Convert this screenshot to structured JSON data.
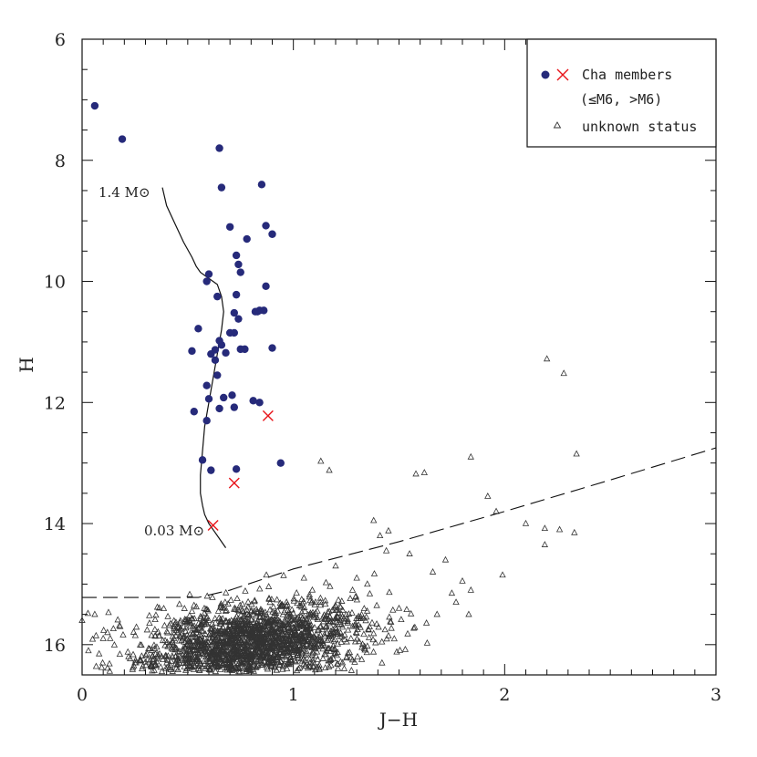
{
  "chart_data": {
    "type": "scatter",
    "title": "",
    "xlabel": "J−H",
    "ylabel": "H",
    "xlim": [
      0,
      3
    ],
    "ylim": [
      16.5,
      6
    ],
    "y_inverted": true,
    "x_ticks": [
      "0",
      "1",
      "2",
      "3"
    ],
    "y_ticks": [
      "6",
      "8",
      "10",
      "12",
      "14",
      "16"
    ],
    "grid": false,
    "legend_position": "top-right",
    "legend": {
      "members_label": "Cha members",
      "members_sub": "(≤M6, >M6)",
      "unknown_label": "unknown status"
    },
    "colors": {
      "members_early": "#262a7a",
      "members_late": "#e8151b",
      "unknown": "#333333",
      "lines": "#111111"
    },
    "annotations": {
      "upper_mass": "1.4 M⊙",
      "lower_mass": "0.03 M⊙"
    },
    "series": [
      {
        "name": "Cha members (≤M6)",
        "marker": "filled-circle",
        "x": [
          0.06,
          0.19,
          0.65,
          0.66,
          0.85,
          0.87,
          0.9,
          0.7,
          0.78,
          0.73,
          0.74,
          0.75,
          0.6,
          0.59,
          0.87,
          0.73,
          0.64,
          0.86,
          0.83,
          0.72,
          0.74,
          0.55,
          0.7,
          0.72,
          0.65,
          0.9,
          0.66,
          0.63,
          0.75,
          0.77,
          0.52,
          0.61,
          0.68,
          0.63,
          0.64,
          0.59,
          0.71,
          0.6,
          0.67,
          0.81,
          0.84,
          0.53,
          0.65,
          0.59,
          0.72,
          0.57,
          0.61,
          0.94,
          0.73,
          0.84,
          0.82
        ],
        "y": [
          7.1,
          7.65,
          7.8,
          8.45,
          8.4,
          9.08,
          9.22,
          9.1,
          9.3,
          9.57,
          9.72,
          9.85,
          9.88,
          10.0,
          10.08,
          10.22,
          10.25,
          10.48,
          10.5,
          10.52,
          10.62,
          10.78,
          10.85,
          10.85,
          10.98,
          11.1,
          11.05,
          11.13,
          11.12,
          11.12,
          11.15,
          11.2,
          11.18,
          11.3,
          11.55,
          11.72,
          11.88,
          11.94,
          11.92,
          11.97,
          12.0,
          12.15,
          12.1,
          12.3,
          12.08,
          12.95,
          13.12,
          13.0,
          13.1,
          10.48,
          10.5
        ]
      },
      {
        "name": "Cha members (>M6)",
        "marker": "x-cross",
        "x": [
          0.88,
          0.72,
          0.62
        ],
        "y": [
          12.22,
          13.33,
          14.03
        ]
      },
      {
        "name": "unknown status",
        "marker": "open-triangle",
        "x": [
          2.2,
          2.28,
          2.34,
          1.84,
          1.92,
          1.96,
          1.58,
          1.62,
          1.13,
          1.17,
          2.19,
          2.26,
          2.19,
          2.33,
          1.38,
          1.45,
          1.72,
          1.8,
          1.99,
          2.1,
          1.83,
          1.41,
          1.44,
          1.55,
          1.66,
          1.84,
          1.68,
          1.75,
          1.77,
          0.0,
          0.06,
          0.12,
          0.03,
          0.1,
          0.18,
          0.22,
          0.25,
          1.2,
          1.3,
          1.35,
          1.5,
          1.28,
          1.05
        ],
        "y": [
          11.28,
          11.52,
          12.85,
          12.9,
          13.55,
          13.8,
          13.18,
          13.16,
          12.97,
          13.12,
          14.08,
          14.1,
          14.35,
          14.15,
          13.95,
          14.12,
          14.6,
          14.95,
          14.85,
          14.0,
          15.5,
          14.2,
          14.45,
          14.5,
          14.8,
          15.1,
          15.5,
          15.15,
          15.3,
          15.6,
          15.5,
          15.8,
          16.1,
          15.9,
          15.7,
          16.2,
          16.3,
          14.7,
          14.9,
          15.0,
          15.4,
          15.1,
          14.9
        ]
      }
    ],
    "dense_cloud": {
      "name": "unknown status",
      "count": 1900,
      "x_center": 0.82,
      "y_center": 15.95,
      "x_spread": 0.26,
      "y_spread": 0.32
    },
    "isochrone": {
      "name": "isochrone",
      "style": "solid",
      "x": [
        0.38,
        0.4,
        0.44,
        0.48,
        0.52,
        0.54,
        0.56,
        0.6,
        0.64,
        0.66,
        0.67,
        0.66,
        0.64,
        0.62,
        0.6,
        0.58,
        0.57,
        0.56,
        0.56,
        0.57,
        0.58,
        0.6,
        0.62,
        0.65,
        0.68
      ],
      "y": [
        8.45,
        8.75,
        9.05,
        9.35,
        9.6,
        9.75,
        9.85,
        9.95,
        10.05,
        10.25,
        10.5,
        10.8,
        11.2,
        11.6,
        12.0,
        12.4,
        12.8,
        13.2,
        13.5,
        13.7,
        13.85,
        14.0,
        14.1,
        14.25,
        14.4
      ]
    },
    "extinction_line": {
      "name": "completeness limit",
      "style": "dashed",
      "x": [
        0.0,
        0.15,
        0.35,
        0.55,
        0.7,
        1.0,
        1.5,
        2.0,
        2.5,
        3.0
      ],
      "y": [
        15.22,
        15.22,
        15.22,
        15.22,
        15.1,
        14.75,
        14.3,
        13.8,
        13.28,
        12.75
      ]
    }
  }
}
